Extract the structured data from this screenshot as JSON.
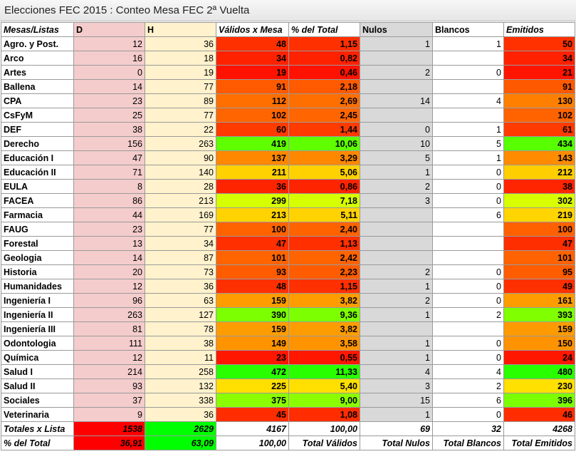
{
  "title": "Elecciones FEC 2015 : Conteo Mesa FEC 2ª Vuelta",
  "table": {
    "header": [
      "Mesas/Listas",
      "D",
      "H",
      "Válidos x Mesa",
      "% del Total",
      "Nulos",
      "Blancos",
      "Emitidos"
    ],
    "rows": [
      [
        "Agro. y Post.",
        12,
        36,
        48,
        "1,15",
        1,
        1,
        50
      ],
      [
        "Arco",
        16,
        18,
        34,
        "0,82",
        null,
        null,
        34
      ],
      [
        "Artes",
        0,
        19,
        19,
        "0,46",
        2,
        0,
        21
      ],
      [
        "Ballena",
        14,
        77,
        91,
        "2,18",
        null,
        null,
        91
      ],
      [
        "CPA",
        23,
        89,
        112,
        "2,69",
        14,
        4,
        130
      ],
      [
        "CsFyM",
        25,
        77,
        102,
        "2,45",
        null,
        null,
        102
      ],
      [
        "DEF",
        38,
        22,
        60,
        "1,44",
        0,
        1,
        61
      ],
      [
        "Derecho",
        156,
        263,
        419,
        "10,06",
        10,
        5,
        434
      ],
      [
        "Educación I",
        47,
        90,
        137,
        "3,29",
        5,
        1,
        143
      ],
      [
        "Educación II",
        71,
        140,
        211,
        "5,06",
        1,
        0,
        212
      ],
      [
        "EULA",
        8,
        28,
        36,
        "0,86",
        2,
        0,
        38
      ],
      [
        "FACEA",
        86,
        213,
        299,
        "7,18",
        3,
        0,
        302
      ],
      [
        "Farmacia",
        44,
        169,
        213,
        "5,11",
        null,
        6,
        219
      ],
      [
        "FAUG",
        23,
        77,
        100,
        "2,40",
        null,
        null,
        100
      ],
      [
        "Forestal",
        13,
        34,
        47,
        "1,13",
        null,
        null,
        47
      ],
      [
        "Geologia",
        14,
        87,
        101,
        "2,42",
        null,
        null,
        101
      ],
      [
        "Historia",
        20,
        73,
        93,
        "2,23",
        2,
        0,
        95
      ],
      [
        "Humanidades",
        12,
        36,
        48,
        "1,15",
        1,
        0,
        49
      ],
      [
        "Ingeniería I",
        96,
        63,
        159,
        "3,82",
        2,
        0,
        161
      ],
      [
        "Ingeniería II",
        263,
        127,
        390,
        "9,36",
        1,
        2,
        393
      ],
      [
        "Ingeniería III",
        81,
        78,
        159,
        "3,82",
        null,
        null,
        159
      ],
      [
        "Odontologia",
        111,
        38,
        149,
        "3,58",
        1,
        0,
        150
      ],
      [
        "Química",
        12,
        11,
        23,
        "0,55",
        1,
        0,
        24
      ],
      [
        "Salud I",
        214,
        258,
        472,
        "11,33",
        4,
        4,
        480
      ],
      [
        "Salud II",
        93,
        132,
        225,
        "5,40",
        3,
        2,
        230
      ],
      [
        "Sociales",
        37,
        338,
        375,
        "9,00",
        15,
        6,
        396
      ],
      [
        "Veterinaria",
        9,
        36,
        45,
        "1,08",
        1,
        0,
        46
      ]
    ],
    "footer": [
      [
        "Totales x Lista",
        1538,
        2629,
        4167,
        "100,00",
        69,
        32,
        4268
      ],
      [
        "% del Total",
        "36,91",
        "63,09",
        "100,00",
        "Total Válidos",
        "Total Nulos",
        "Total Blancos",
        "Total Emitidos"
      ]
    ]
  }
}
